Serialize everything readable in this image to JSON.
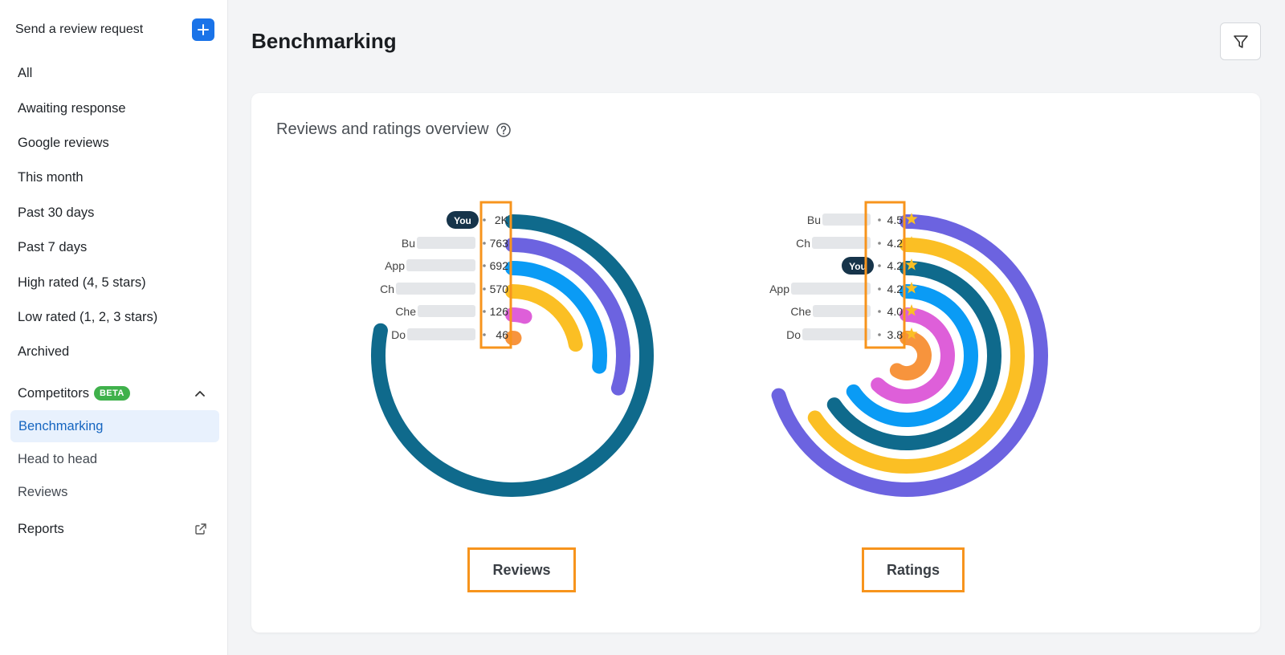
{
  "sidebar": {
    "send_label": "Send a review request",
    "items": [
      {
        "label": "All"
      },
      {
        "label": "Awaiting response"
      },
      {
        "label": "Google reviews"
      },
      {
        "label": "This month"
      },
      {
        "label": "Past 30 days"
      },
      {
        "label": "Past 7 days"
      },
      {
        "label": "High rated (4, 5 stars)"
      },
      {
        "label": "Low rated (1, 2, 3 stars)"
      },
      {
        "label": "Archived"
      }
    ],
    "competitors_label": "Competitors",
    "beta_badge": "BETA",
    "sub_items": [
      {
        "label": "Benchmarking"
      },
      {
        "label": "Head to head"
      },
      {
        "label": "Reviews"
      }
    ],
    "reports_label": "Reports"
  },
  "header": {
    "title": "Benchmarking"
  },
  "card": {
    "title": "Reviews and ratings overview",
    "reviews_button": "Reviews",
    "ratings_button": "Ratings"
  },
  "colors": {
    "accent": "#1a73e8",
    "highlight": "#f7941d",
    "star": "#fbbf24",
    "you_badge": "#16344a"
  },
  "chart_data": [
    {
      "type": "radial-bar",
      "name": "Reviews",
      "max": 2000,
      "series": [
        {
          "label": "You",
          "display": "2K",
          "value": 2000,
          "color": "#0f6a8c",
          "you": true
        },
        {
          "label": "Bu",
          "display": "763",
          "value": 763,
          "color": "#6c63e0"
        },
        {
          "label": "App",
          "display": "692",
          "value": 692,
          "color": "#0a9bf5"
        },
        {
          "label": "Ch",
          "display": "570",
          "value": 570,
          "color": "#fbbf24"
        },
        {
          "label": "Che",
          "display": "126",
          "value": 126,
          "color": "#de5fd9"
        },
        {
          "label": "Do",
          "display": "46",
          "value": 46,
          "color": "#f7943d"
        }
      ]
    },
    {
      "type": "radial-bar",
      "name": "Ratings",
      "max": 5,
      "series": [
        {
          "label": "Bu",
          "display": "4.5",
          "value": 4.5,
          "color": "#6c63e0"
        },
        {
          "label": "Ch",
          "display": "4.2",
          "value": 4.2,
          "color": "#fbbf24"
        },
        {
          "label": "You",
          "display": "4.2",
          "value": 4.2,
          "color": "#0f6a8c",
          "you": true
        },
        {
          "label": "App",
          "display": "4.2",
          "value": 4.2,
          "color": "#0a9bf5"
        },
        {
          "label": "Che",
          "display": "4.0",
          "value": 4.0,
          "color": "#de5fd9"
        },
        {
          "label": "Do",
          "display": "3.8",
          "value": 3.8,
          "color": "#f7943d"
        }
      ]
    }
  ]
}
